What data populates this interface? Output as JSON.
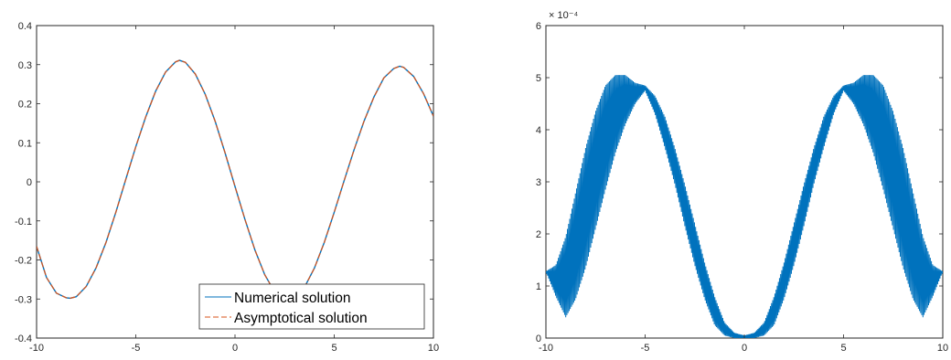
{
  "colors": {
    "numerical": "#0072bd",
    "asymptotical": "#d95319",
    "axes": "#262626",
    "background": "#ffffff"
  },
  "chart_data": [
    {
      "type": "line",
      "grid": false,
      "xlim": [
        -10,
        10
      ],
      "ylim": [
        -0.4,
        0.4
      ],
      "x_ticks": [
        "-10",
        "-5",
        "0",
        "5",
        "10"
      ],
      "y_ticks": [
        "-0.4",
        "-0.3",
        "-0.2",
        "-0.1",
        "0",
        "0.1",
        "0.2",
        "0.3",
        "0.4"
      ],
      "legend": {
        "placement": "bottom-right",
        "entries": [
          "Numerical solution",
          "Asymptotical solution"
        ]
      },
      "series": [
        {
          "name": "Numerical solution",
          "style": "solid",
          "x": [
            -10,
            -9.5,
            -9,
            -8.5,
            -8.3,
            -8,
            -7.5,
            -7,
            -6.5,
            -6,
            -5.5,
            -5,
            -4.5,
            -4,
            -3.5,
            -3,
            -2.8,
            -2.5,
            -2,
            -1.5,
            -1,
            -0.5,
            0,
            0.5,
            1,
            1.5,
            2,
            2.5,
            3,
            3.5,
            4,
            4.5,
            5,
            5.5,
            6,
            6.5,
            7,
            7.5,
            8,
            8.3,
            8.5,
            9,
            9.5,
            10
          ],
          "y": [
            -0.165,
            -0.245,
            -0.285,
            -0.297,
            -0.298,
            -0.294,
            -0.268,
            -0.22,
            -0.155,
            -0.077,
            0.007,
            0.09,
            0.166,
            0.232,
            0.281,
            0.307,
            0.311,
            0.306,
            0.276,
            0.224,
            0.155,
            0.074,
            -0.012,
            -0.096,
            -0.174,
            -0.238,
            -0.282,
            -0.302,
            -0.298,
            -0.27,
            -0.221,
            -0.155,
            -0.078,
            0.003,
            0.082,
            0.155,
            0.217,
            0.266,
            0.29,
            0.296,
            0.293,
            0.27,
            0.226,
            0.168
          ]
        },
        {
          "name": "Asymptotical solution",
          "style": "dashed",
          "x": [
            -10,
            -9.5,
            -9,
            -8.5,
            -8.3,
            -8,
            -7.5,
            -7,
            -6.5,
            -6,
            -5.5,
            -5,
            -4.5,
            -4,
            -3.5,
            -3,
            -2.8,
            -2.5,
            -2,
            -1.5,
            -1,
            -0.5,
            0,
            0.5,
            1,
            1.5,
            2,
            2.5,
            3,
            3.5,
            4,
            4.5,
            5,
            5.5,
            6,
            6.5,
            7,
            7.5,
            8,
            8.3,
            8.5,
            9,
            9.5,
            10
          ],
          "y": [
            -0.165,
            -0.245,
            -0.285,
            -0.297,
            -0.298,
            -0.294,
            -0.268,
            -0.22,
            -0.155,
            -0.077,
            0.007,
            0.09,
            0.166,
            0.232,
            0.281,
            0.307,
            0.311,
            0.306,
            0.276,
            0.224,
            0.155,
            0.074,
            -0.012,
            -0.096,
            -0.174,
            -0.238,
            -0.282,
            -0.302,
            -0.298,
            -0.27,
            -0.221,
            -0.155,
            -0.078,
            0.003,
            0.082,
            0.155,
            0.217,
            0.266,
            0.29,
            0.296,
            0.293,
            0.27,
            0.226,
            0.168
          ]
        }
      ]
    },
    {
      "type": "line",
      "grid": false,
      "xlim": [
        -10,
        10
      ],
      "ylim": [
        0,
        6
      ],
      "y_scale_factor": "× 10⁻⁴",
      "x_ticks": [
        "-10",
        "-5",
        "0",
        "5",
        "10"
      ],
      "y_ticks": [
        "0",
        "1",
        "2",
        "3",
        "4",
        "5",
        "6"
      ],
      "series": [
        {
          "style": "solid, rapid oscillation",
          "x": [
            -10,
            -9.5,
            -9,
            -8.5,
            -8,
            -7.5,
            -7,
            -6.5,
            -6,
            -5.5,
            -5,
            -4.5,
            -4,
            -3.5,
            -3,
            -2.5,
            -2,
            -1.5,
            -1,
            -0.5,
            0,
            0.5,
            1,
            1.5,
            2,
            2.5,
            3,
            3.5,
            4,
            4.5,
            5,
            5.5,
            6,
            6.5,
            7,
            7.5,
            8,
            8.5,
            9,
            9.5,
            10
          ],
          "upper": [
            1.28,
            1.4,
            1.95,
            2.8,
            3.65,
            4.35,
            4.85,
            5.05,
            5.05,
            4.9,
            4.85,
            4.65,
            4.25,
            3.65,
            2.95,
            2.2,
            1.45,
            0.8,
            0.3,
            0.1,
            0.05,
            0.1,
            0.3,
            0.8,
            1.45,
            2.2,
            2.95,
            3.65,
            4.25,
            4.65,
            4.85,
            4.9,
            5.05,
            5.05,
            4.85,
            4.35,
            3.65,
            2.8,
            1.95,
            1.4,
            1.28
          ],
          "lower": [
            1.28,
            0.8,
            0.4,
            0.75,
            1.35,
            2.1,
            2.85,
            3.55,
            4.1,
            4.5,
            4.75,
            4.3,
            3.65,
            2.95,
            2.15,
            1.4,
            0.75,
            0.25,
            0.05,
            0.0,
            0.0,
            0.0,
            0.05,
            0.25,
            0.75,
            1.4,
            2.15,
            2.95,
            3.65,
            4.3,
            4.75,
            4.5,
            4.1,
            3.55,
            2.85,
            2.1,
            1.35,
            0.75,
            0.4,
            0.8,
            1.28
          ]
        }
      ]
    }
  ]
}
